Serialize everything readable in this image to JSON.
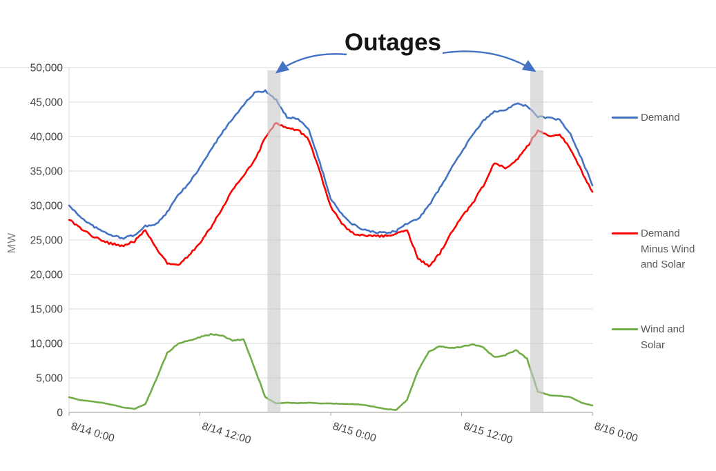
{
  "page": {
    "background": "#ffffff"
  },
  "annotation": {
    "outages_label": "Outages",
    "arrow_color": "#4472c4"
  },
  "chart_data": {
    "type": "line",
    "title": "",
    "ylabel": "MW",
    "xlabel": "",
    "ylim": [
      0,
      50000
    ],
    "ytick_step": 5000,
    "x_range_hours": [
      0,
      48
    ],
    "grid": true,
    "legend_position": "right",
    "sample_interval_hours": 1,
    "xticks": [
      {
        "hour": 0,
        "label": "8/14 0:00"
      },
      {
        "hour": 12,
        "label": "8/14 12:00"
      },
      {
        "hour": 24,
        "label": "8/15 0:00"
      },
      {
        "hour": 36,
        "label": "8/15 12:00"
      },
      {
        "hour": 48,
        "label": "8/16 0:00"
      }
    ],
    "series": [
      {
        "name": "Demand",
        "color": "#4472C4",
        "values": [
          30000,
          28400,
          27200,
          26300,
          25600,
          25300,
          25700,
          27000,
          27300,
          29000,
          31500,
          33200,
          35500,
          38000,
          40500,
          42600,
          44600,
          46300,
          46600,
          45300,
          42800,
          42600,
          41000,
          36200,
          31000,
          28800,
          27300,
          26500,
          26100,
          26000,
          26300,
          27400,
          28000,
          30000,
          32500,
          35200,
          37800,
          40200,
          42300,
          43600,
          43900,
          44800,
          44400,
          42900,
          42700,
          42400,
          40300,
          36800,
          33000
        ]
      },
      {
        "name": "Demand Minus Wind and Solar",
        "color": "#FF0000",
        "values": [
          27900,
          26700,
          25700,
          24900,
          24400,
          24200,
          24800,
          26400,
          23800,
          21600,
          21300,
          22800,
          24600,
          26800,
          29400,
          32300,
          34300,
          36500,
          39800,
          42000,
          41200,
          41000,
          39500,
          34800,
          29800,
          27400,
          26000,
          25700,
          25600,
          25600,
          25900,
          26400,
          22300,
          21200,
          23000,
          25900,
          28300,
          30300,
          32900,
          36200,
          35500,
          36500,
          38500,
          40900,
          40100,
          40300,
          38200,
          35000,
          32000
        ]
      },
      {
        "name": "Wind and Solar",
        "color": "#70AD47",
        "values": [
          2200,
          1800,
          1600,
          1400,
          1100,
          700,
          500,
          1200,
          4800,
          8600,
          10000,
          10400,
          10900,
          11300,
          11200,
          10400,
          10600,
          6500,
          2200,
          1300,
          1400,
          1350,
          1400,
          1300,
          1300,
          1250,
          1200,
          1100,
          800,
          500,
          350,
          1800,
          6000,
          8800,
          9600,
          9300,
          9500,
          9900,
          9400,
          8000,
          8300,
          9000,
          7800,
          3000,
          2500,
          2400,
          2200,
          1400,
          1000
        ]
      }
    ],
    "outage_bands_hours": [
      [
        18.2,
        19.4
      ],
      [
        42.3,
        43.5
      ]
    ],
    "outage_band_color": "#c8c8c8"
  }
}
